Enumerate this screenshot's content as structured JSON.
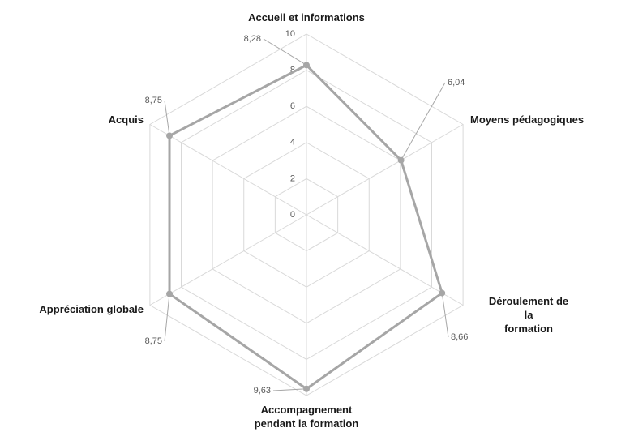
{
  "chart_data": {
    "type": "radar",
    "categories": [
      "Accueil et informations",
      "Moyens pédagogiques",
      "Déroulement de la\nformation",
      "Accompagnement\npendant la formation",
      "Appréciation globale",
      "Acquis"
    ],
    "values": [
      8.28,
      6.04,
      8.66,
      9.63,
      8.75,
      8.75
    ],
    "value_labels": [
      "8,28",
      "6,04",
      "8,66",
      "9,63",
      "8,75",
      "8,75"
    ],
    "color": "#a6a6a6",
    "ylim": [
      0,
      10
    ],
    "yticks": [
      0,
      2,
      4,
      6,
      8,
      10
    ],
    "grid": true
  }
}
